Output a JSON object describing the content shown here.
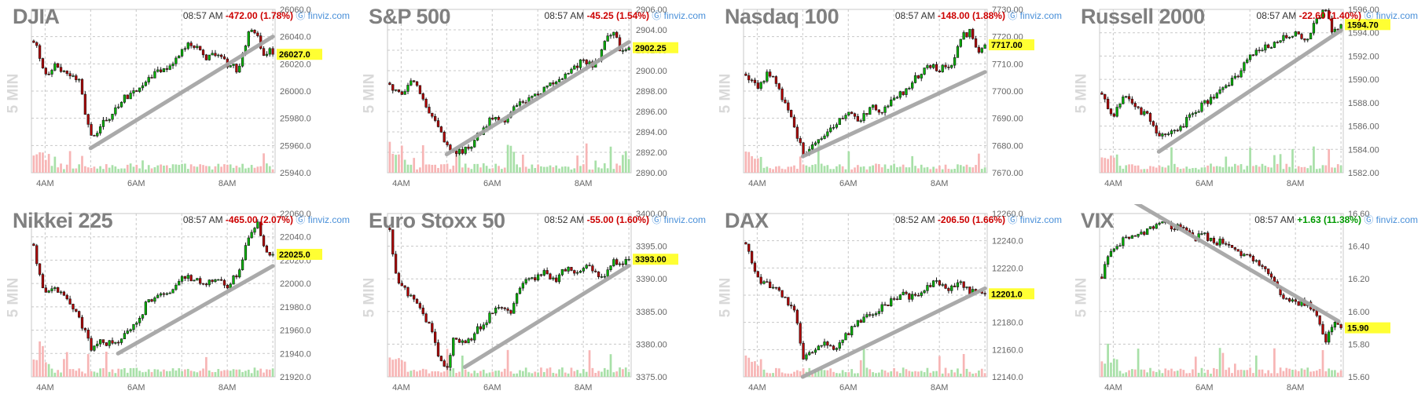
{
  "colors": {
    "up": "#00b300",
    "down": "#b30000",
    "upVol": "#a8e0a8",
    "downVol": "#f7b5b5",
    "trend": "#a6a6a6",
    "grid": "#c8c8c8",
    "axisText": "#666666",
    "highlight": "#ffff33",
    "negative": "#cc0000",
    "positive": "#009900",
    "source": "#4a90d9"
  },
  "source_icon": "circle-link-icon",
  "chart_data": [
    {
      "type": "candlestick",
      "title": "DJIA",
      "time": "08:57 AM",
      "change": "-472.00 (1.78%)",
      "direction": "down",
      "source": "finviz.com",
      "timeframe": "5 MIN",
      "ylim": [
        25940,
        26060
      ],
      "yticks": [
        "26060.0",
        "26040.0",
        "26020.0",
        "26000.0",
        "25980.0",
        "25960.0",
        "25940.0"
      ],
      "last": "26027.0",
      "last_value": 26027,
      "xlim": [
        3.7,
        9.05
      ],
      "xticks": [
        "4AM",
        "6AM",
        "8AM"
      ],
      "x": [
        3.75,
        3.83,
        4.0,
        4.25,
        4.5,
        4.75,
        4.92,
        5.05,
        5.25,
        5.5,
        5.75,
        6.0,
        6.25,
        6.5,
        6.75,
        7.0,
        7.25,
        7.5,
        7.75,
        8.0,
        8.25,
        8.5,
        8.67,
        8.83,
        8.92,
        9.0
      ],
      "y": [
        26035,
        26030,
        26010,
        26020,
        26012,
        26008,
        25975,
        25965,
        25975,
        25985,
        25995,
        26000,
        26010,
        26015,
        26020,
        26030,
        26035,
        26025,
        26028,
        26020,
        26015,
        26045,
        26040,
        26025,
        26030,
        26027
      ],
      "trend": [
        [
          5.0,
          25958
        ],
        [
          9.0,
          26040
        ]
      ]
    },
    {
      "type": "candlestick",
      "title": "S&P 500",
      "time": "08:57 AM",
      "change": "-45.25 (1.54%)",
      "direction": "down",
      "source": "finviz.com",
      "timeframe": "5 MIN",
      "ylim": [
        2890,
        2906
      ],
      "yticks": [
        "2906.00",
        "2904.00",
        "2902.00",
        "2900.00",
        "2898.00",
        "2896.00",
        "2894.00",
        "2892.00",
        "2890.00"
      ],
      "last": "2902.25",
      "last_value": 2902.25,
      "xlim": [
        3.7,
        9.05
      ],
      "xticks": [
        "4AM",
        "6AM",
        "8AM"
      ],
      "x": [
        3.75,
        4.0,
        4.25,
        4.5,
        4.75,
        5.0,
        5.25,
        5.5,
        5.75,
        6.0,
        6.25,
        6.5,
        6.75,
        7.0,
        7.25,
        7.5,
        7.75,
        8.0,
        8.25,
        8.5,
        8.67,
        8.83,
        9.0
      ],
      "y": [
        2898.5,
        2897.5,
        2899,
        2897,
        2895,
        2892.5,
        2892,
        2892.5,
        2894,
        2895.5,
        2895,
        2896.5,
        2897,
        2897.5,
        2898.5,
        2899,
        2900,
        2901,
        2900.5,
        2903,
        2904,
        2901.5,
        2902.25
      ],
      "trend": [
        [
          5.0,
          2891.8
        ],
        [
          9.0,
          2902.8
        ]
      ]
    },
    {
      "type": "candlestick",
      "title": "Nasdaq 100",
      "time": "08:57 AM",
      "change": "-148.00 (1.88%)",
      "direction": "down",
      "source": "finviz.com",
      "timeframe": "5 MIN",
      "ylim": [
        7670,
        7730
      ],
      "yticks": [
        "7730.00",
        "7720.00",
        "7710.00",
        "7700.00",
        "7690.00",
        "7680.00",
        "7670.00"
      ],
      "last": "7717.00",
      "last_value": 7717,
      "xlim": [
        3.7,
        9.05
      ],
      "xticks": [
        "4AM",
        "6AM",
        "8AM"
      ],
      "x": [
        3.75,
        4.0,
        4.25,
        4.5,
        4.75,
        5.0,
        5.25,
        5.5,
        5.75,
        6.0,
        6.25,
        6.5,
        6.75,
        7.0,
        7.25,
        7.5,
        7.75,
        8.0,
        8.25,
        8.5,
        8.67,
        8.83,
        9.0
      ],
      "y": [
        7705,
        7701,
        7707,
        7700,
        7690,
        7677,
        7680,
        7684,
        7688,
        7691,
        7690,
        7694,
        7693,
        7697,
        7700,
        7705,
        7710,
        7708,
        7710,
        7720,
        7722,
        7714,
        7717
      ],
      "trend": [
        [
          5.0,
          7676
        ],
        [
          9.0,
          7707
        ]
      ]
    },
    {
      "type": "candlestick",
      "title": "Russell 2000",
      "time": "08:57 AM",
      "change": "-22.60 (1.40%)",
      "direction": "down",
      "source": "finviz.com",
      "timeframe": "5 MIN",
      "ylim": [
        1582,
        1596
      ],
      "yticks": [
        "1596.00",
        "1594.00",
        "1592.00",
        "1590.00",
        "1588.00",
        "1586.00",
        "1584.00",
        "1582.00"
      ],
      "last": "1594.70",
      "last_value": 1594.7,
      "xlim": [
        3.7,
        9.05
      ],
      "xticks": [
        "4AM",
        "6AM",
        "8AM"
      ],
      "x": [
        3.75,
        4.0,
        4.25,
        4.5,
        4.75,
        5.0,
        5.25,
        5.5,
        5.75,
        6.0,
        6.25,
        6.5,
        6.75,
        7.0,
        7.25,
        7.5,
        7.75,
        8.0,
        8.25,
        8.5,
        8.67,
        8.83,
        9.0
      ],
      "y": [
        1588.5,
        1587,
        1588.5,
        1587.5,
        1587,
        1585,
        1585.5,
        1586,
        1587,
        1588,
        1588.5,
        1589.5,
        1590.5,
        1592,
        1592.5,
        1593,
        1593.5,
        1594,
        1593.5,
        1595.5,
        1596,
        1594,
        1594.7
      ],
      "trend": [
        [
          5.0,
          1583.8
        ],
        [
          9.0,
          1594.2
        ]
      ]
    },
    {
      "type": "candlestick",
      "title": "Nikkei 225",
      "time": "08:57 AM",
      "change": "-465.00 (2.07%)",
      "direction": "down",
      "source": "finviz.com",
      "timeframe": "5 MIN",
      "ylim": [
        21920,
        22060
      ],
      "yticks": [
        "22060.0",
        "22040.0",
        "22020.0",
        "22000.0",
        "21980.0",
        "21960.0",
        "21940.0",
        "21920.0"
      ],
      "last": "22025.0",
      "last_value": 22025,
      "xlim": [
        3.7,
        9.05
      ],
      "xticks": [
        "4AM",
        "6AM",
        "8AM"
      ],
      "x": [
        3.75,
        4.0,
        4.25,
        4.5,
        4.75,
        5.0,
        5.25,
        5.5,
        5.75,
        6.0,
        6.25,
        6.5,
        6.75,
        7.0,
        7.25,
        7.5,
        7.75,
        8.0,
        8.25,
        8.5,
        8.67,
        8.83,
        9.0
      ],
      "y": [
        22030,
        21990,
        21995,
        21985,
        21970,
        21945,
        21950,
        21948,
        21955,
        21965,
        21985,
        21990,
        21995,
        22005,
        22005,
        22000,
        22003,
        21998,
        22010,
        22045,
        22050,
        22030,
        22025
      ],
      "trend": [
        [
          5.6,
          21940
        ],
        [
          9.0,
          22015
        ]
      ]
    },
    {
      "type": "candlestick",
      "title": "Euro Stoxx 50",
      "time": "08:52 AM",
      "change": "-55.00 (1.60%)",
      "direction": "down",
      "source": "finviz.com",
      "timeframe": "5 MIN",
      "ylim": [
        3375,
        3400
      ],
      "yticks": [
        "3400.00",
        "3395.00",
        "3390.00",
        "3385.00",
        "3380.00",
        "3375.00"
      ],
      "last": "3393.00",
      "last_value": 3393,
      "xlim": [
        3.7,
        9.05
      ],
      "xticks": [
        "4AM",
        "6AM",
        "8AM"
      ],
      "x": [
        3.75,
        3.9,
        4.1,
        4.35,
        4.6,
        4.85,
        5.0,
        5.15,
        5.4,
        5.65,
        5.9,
        6.15,
        6.4,
        6.65,
        6.9,
        7.15,
        7.4,
        7.65,
        7.9,
        8.15,
        8.4,
        8.65,
        8.85,
        9.0
      ],
      "y": [
        3397,
        3390,
        3388,
        3386,
        3383,
        3378,
        3376,
        3381,
        3380,
        3382,
        3384,
        3386,
        3385,
        3389,
        3390,
        3391,
        3390,
        3392,
        3391,
        3392,
        3390,
        3393,
        3392,
        3393
      ],
      "trend": [
        [
          5.4,
          3376.5
        ],
        [
          9.0,
          3392
        ]
      ]
    },
    {
      "type": "candlestick",
      "title": "DAX",
      "time": "08:52 AM",
      "change": "-206.50 (1.66%)",
      "direction": "down",
      "source": "finviz.com",
      "timeframe": "5 MIN",
      "ylim": [
        12140,
        12260
      ],
      "yticks": [
        "12260.0",
        "12240.0",
        "12220.0",
        "12200.0",
        "12180.0",
        "12160.0",
        "12140.0"
      ],
      "last": "12201.0",
      "last_value": 12201,
      "xlim": [
        3.7,
        9.05
      ],
      "xticks": [
        "4AM",
        "6AM",
        "8AM"
      ],
      "x": [
        3.75,
        3.9,
        4.1,
        4.35,
        4.6,
        4.85,
        5.0,
        5.2,
        5.45,
        5.7,
        5.95,
        6.2,
        6.45,
        6.7,
        6.95,
        7.2,
        7.45,
        7.7,
        7.95,
        8.2,
        8.45,
        8.7,
        8.9,
        9.0
      ],
      "y": [
        12240,
        12220,
        12210,
        12205,
        12200,
        12185,
        12150,
        12160,
        12165,
        12160,
        12170,
        12180,
        12185,
        12190,
        12195,
        12200,
        12198,
        12205,
        12210,
        12205,
        12208,
        12202,
        12200,
        12201
      ],
      "trend": [
        [
          5.0,
          12140
        ],
        [
          9.0,
          12205
        ]
      ]
    },
    {
      "type": "candlestick",
      "title": "VIX",
      "time": "08:57 AM",
      "change": "+1.63 (11.38%)",
      "direction": "up",
      "source": "finviz.com",
      "timeframe": "5 MIN",
      "ylim": [
        15.6,
        16.6
      ],
      "yticks": [
        "16.60",
        "16.40",
        "16.20",
        "16.00",
        "15.80",
        "15.60"
      ],
      "last": "15.90",
      "last_value": 15.9,
      "xlim": [
        3.7,
        9.05
      ],
      "xticks": [
        "4AM",
        "6AM",
        "8AM"
      ],
      "x": [
        3.75,
        4.0,
        4.25,
        4.5,
        4.75,
        5.0,
        5.25,
        5.5,
        5.75,
        6.0,
        6.25,
        6.5,
        6.75,
        7.0,
        7.25,
        7.5,
        7.75,
        8.0,
        8.25,
        8.5,
        8.67,
        8.83,
        9.0
      ],
      "y": [
        16.22,
        16.4,
        16.44,
        16.45,
        16.5,
        16.55,
        16.53,
        16.5,
        16.45,
        16.46,
        16.43,
        16.41,
        16.35,
        16.33,
        16.28,
        16.18,
        16.08,
        16.05,
        16.05,
        15.95,
        15.8,
        15.95,
        15.9
      ],
      "trend": [
        [
          4.4,
          16.68
        ],
        [
          8.95,
          15.94
        ]
      ]
    }
  ]
}
